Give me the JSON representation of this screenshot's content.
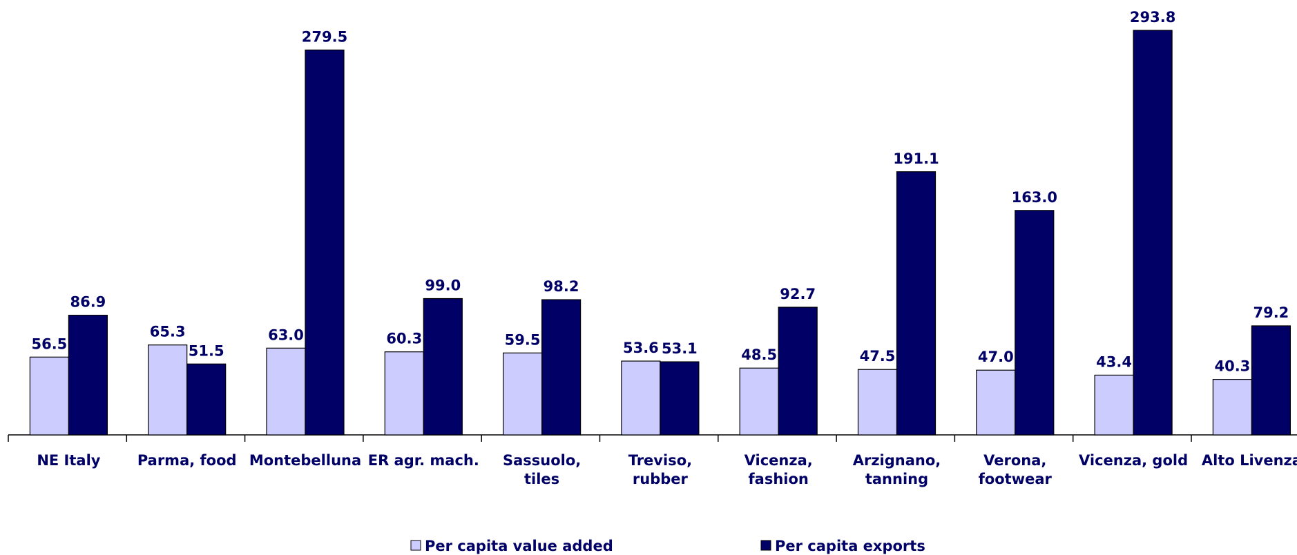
{
  "chart_data": {
    "type": "bar",
    "categories": [
      "NE Italy",
      "Parma, food",
      "Montebelluna",
      "ER agr. mach.",
      "Sassuolo,\ntiles",
      "Treviso,\nrubber",
      "Vicenza,\nfashion",
      "Arzignano,\ntanning",
      "Verona,\nfootwear",
      "Vicenza, gold",
      "Alto Livenza"
    ],
    "series": [
      {
        "name": "Per capita value added",
        "color": "#ccccff",
        "values": [
          56.5,
          65.3,
          63.0,
          60.3,
          59.5,
          53.6,
          48.5,
          47.5,
          47.0,
          43.4,
          40.3
        ],
        "value_labels": [
          "56.5",
          "65.3",
          "63.0",
          "60.3",
          "59.5",
          "53.6",
          "48.5",
          "47.5",
          "47.0",
          "43.4",
          "40.3"
        ]
      },
      {
        "name": "Per capita exports",
        "color": "#000066",
        "values": [
          86.9,
          51.5,
          279.5,
          99.0,
          98.2,
          53.1,
          92.7,
          191.1,
          163.0,
          293.8,
          79.2
        ],
        "value_labels": [
          "86.9",
          "51.5",
          "279.5",
          "99.0",
          "98.2",
          "53.1",
          "92.7",
          "191.1",
          "163.0",
          "293.8",
          "79.2"
        ]
      }
    ],
    "legend": "bottom"
  }
}
